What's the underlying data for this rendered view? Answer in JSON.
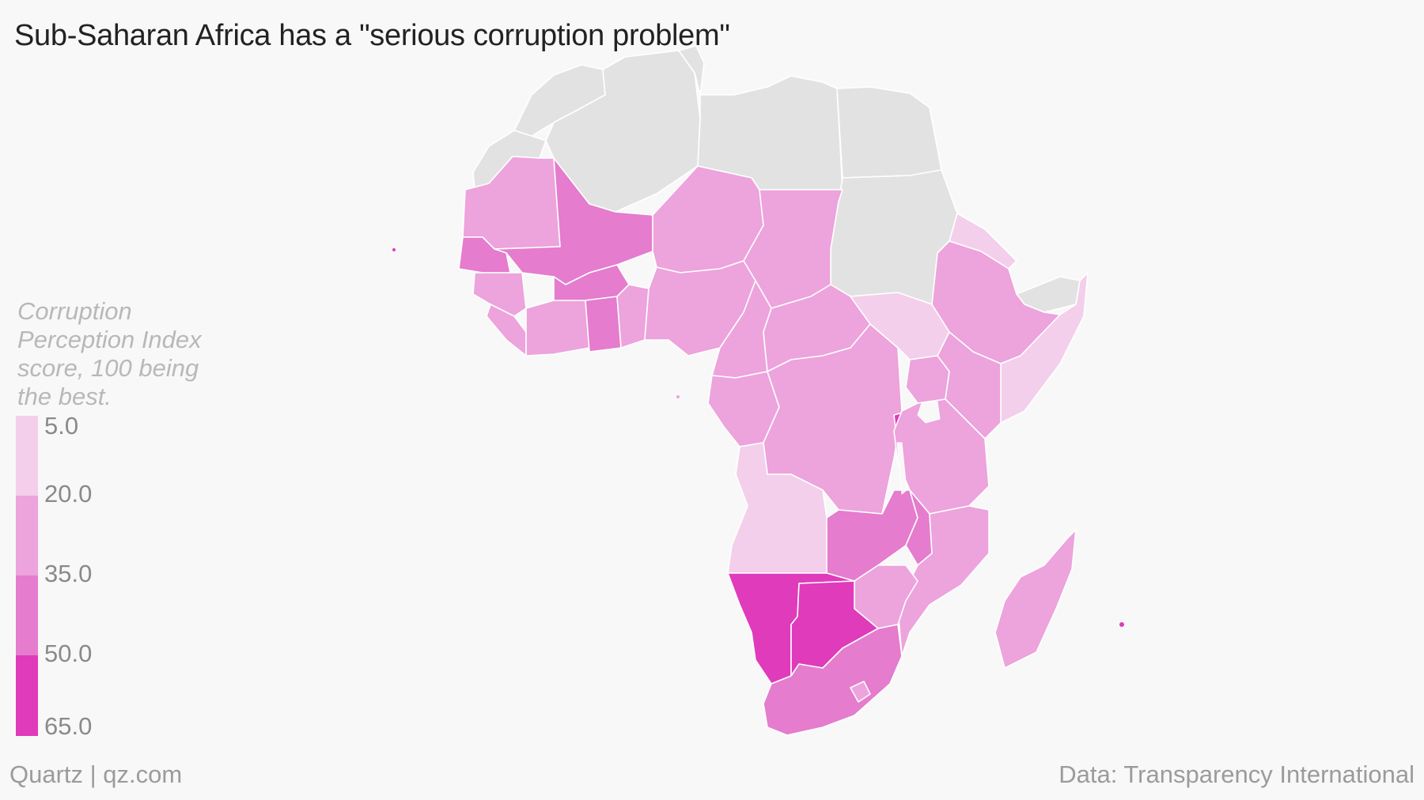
{
  "title": "Sub-Saharan Africa has a \"serious corruption problem\"",
  "legend": {
    "title": "Corruption Perception Index score, 100 being the best.",
    "ticks": [
      "5.0",
      "20.0",
      "35.0",
      "50.0",
      "65.0"
    ],
    "bin_colors": [
      "#f3cfeb",
      "#eda3dc",
      "#e57ccd",
      "#df3bbb"
    ]
  },
  "footer": {
    "source_left": "Quartz | qz.com",
    "source_right": "Data: Transparency International"
  },
  "colors": {
    "background": "#f8f8f8",
    "no_data": "#e2e2e2",
    "border": "#ffffff"
  },
  "map": {
    "regions": [
      {
        "name": "Morocco",
        "bin": null
      },
      {
        "name": "Algeria",
        "bin": null
      },
      {
        "name": "Tunisia",
        "bin": null
      },
      {
        "name": "Libya",
        "bin": null
      },
      {
        "name": "Egypt",
        "bin": null
      },
      {
        "name": "Sudan",
        "bin": null
      },
      {
        "name": "Western Sahara",
        "bin": null
      },
      {
        "name": "Somaliland",
        "bin": null
      },
      {
        "name": "Mauritania",
        "bin": 1
      },
      {
        "name": "Mali",
        "bin": 2
      },
      {
        "name": "Niger",
        "bin": 1
      },
      {
        "name": "Chad",
        "bin": 1
      },
      {
        "name": "Senegal",
        "bin": 2
      },
      {
        "name": "Guinea",
        "bin": 1
      },
      {
        "name": "Burkina Faso",
        "bin": 2
      },
      {
        "name": "Ghana",
        "bin": 2
      },
      {
        "name": "Nigeria",
        "bin": 1
      },
      {
        "name": "Cameroon",
        "bin": 1
      },
      {
        "name": "Central African Republic",
        "bin": 1
      },
      {
        "name": "South Sudan",
        "bin": 0
      },
      {
        "name": "Eritrea",
        "bin": 0
      },
      {
        "name": "Ethiopia",
        "bin": 1
      },
      {
        "name": "Somalia",
        "bin": 0
      },
      {
        "name": "Kenya",
        "bin": 1
      },
      {
        "name": "Democratic Republic of the Congo",
        "bin": 1
      },
      {
        "name": "Angola",
        "bin": 0
      },
      {
        "name": "Tanzania",
        "bin": 1
      },
      {
        "name": "Zambia",
        "bin": 2
      },
      {
        "name": "Malawi",
        "bin": 2
      },
      {
        "name": "Mozambique",
        "bin": 1
      },
      {
        "name": "Zimbabwe",
        "bin": 1
      },
      {
        "name": "Namibia",
        "bin": 3
      },
      {
        "name": "Botswana",
        "bin": 3
      },
      {
        "name": "South Africa",
        "bin": 2
      },
      {
        "name": "Madagascar",
        "bin": 1
      },
      {
        "name": "Rwanda",
        "bin": 3
      }
    ]
  }
}
